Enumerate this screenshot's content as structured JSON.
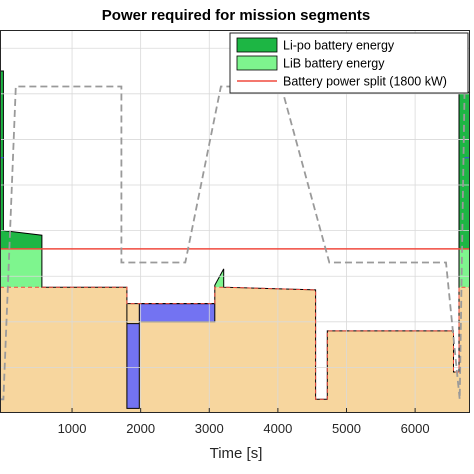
{
  "chart_data": {
    "type": "area",
    "title": "Power required for mission segments",
    "xlabel": "Time [s]",
    "ylabel": "",
    "xlim": [
      -50,
      6800
    ],
    "ylim": [
      0,
      4200
    ],
    "x_ticks": [
      1000,
      2000,
      3000,
      4000,
      5000,
      6000
    ],
    "x_tick_labels": [
      "1000",
      "2000",
      "3000",
      "4000",
      "5000",
      "6000"
    ],
    "grid": true,
    "legend_position": "top-right",
    "colors": {
      "lipo": "#1db644",
      "lib": "#7ef58e",
      "base": "#f7d69e",
      "deficit": "#7373f2",
      "split": "#f04a3e",
      "dashed_gray": "#9a9a9a",
      "blue_line": "#3a59d6"
    },
    "battery_split_kw": 1800,
    "series": [
      {
        "name": "Li-po battery energy",
        "kind": "band_above_split",
        "x": [
          -50,
          0,
          0,
          560,
          560,
          1800,
          1800,
          1980,
          1980,
          3080,
          3080,
          3210,
          3210,
          4550,
          4550,
          4720,
          4720,
          6560,
          6560,
          6640,
          6640,
          6800
        ],
        "values": [
          3750,
          3750,
          2000,
          1950,
          1380,
          1380,
          1200,
          1200,
          1200,
          1200,
          1400,
          1580,
          1380,
          1350,
          150,
          150,
          900,
          900,
          450,
          450,
          3500,
          3520
        ]
      },
      {
        "name": "LiB battery energy",
        "kind": "band_between_base_and_split",
        "x": [
          -50,
          0,
          0,
          560,
          560,
          1800,
          1800,
          1980,
          1980,
          3080,
          3080,
          3210,
          3210,
          4550,
          4550,
          4720,
          4720,
          6560,
          6560,
          6640,
          6640,
          6800
        ],
        "values": [
          3750,
          3750,
          2000,
          1950,
          1380,
          1380,
          1200,
          1200,
          1200,
          1200,
          1400,
          1580,
          1380,
          1350,
          150,
          150,
          900,
          900,
          450,
          450,
          3500,
          3520
        ]
      },
      {
        "name": "Battery power split (1800 kW)",
        "kind": "hline",
        "values": [
          1800
        ]
      },
      {
        "name": "",
        "kind": "dashed",
        "x": [
          -50,
          0,
          180,
          1200,
          1720,
          1720,
          2650,
          3170,
          3170,
          4050,
          4750,
          4750,
          6450,
          6650,
          6720
        ],
        "values": [
          150,
          150,
          3580,
          3580,
          3580,
          1650,
          1650,
          3580,
          3580,
          3580,
          1650,
          1650,
          1650,
          150,
          3500
        ]
      },
      {
        "name": "",
        "kind": "deficit",
        "x": [
          1800,
          1800,
          1980,
          1980,
          3080,
          3080
        ],
        "values": [
          1200,
          980,
          980,
          1200,
          1200,
          1200
        ],
        "lower": [
          1200,
          50,
          50,
          1000,
          1000,
          1200
        ]
      },
      {
        "name": "",
        "kind": "blue_segments",
        "x": [
          -50,
          0
        ],
        "values": [
          2800,
          2800
        ],
        "x2": [
          6720,
          6800
        ],
        "values2": [
          2800,
          2800
        ]
      }
    ]
  },
  "legend": {
    "items": [
      {
        "label": "Li-po battery energy",
        "swatch": "#1db644"
      },
      {
        "label": "LiB battery energy",
        "swatch": "#7ef58e"
      },
      {
        "label": "Battery power split (1800 kW)",
        "swatch": "#f04a3e"
      }
    ]
  }
}
